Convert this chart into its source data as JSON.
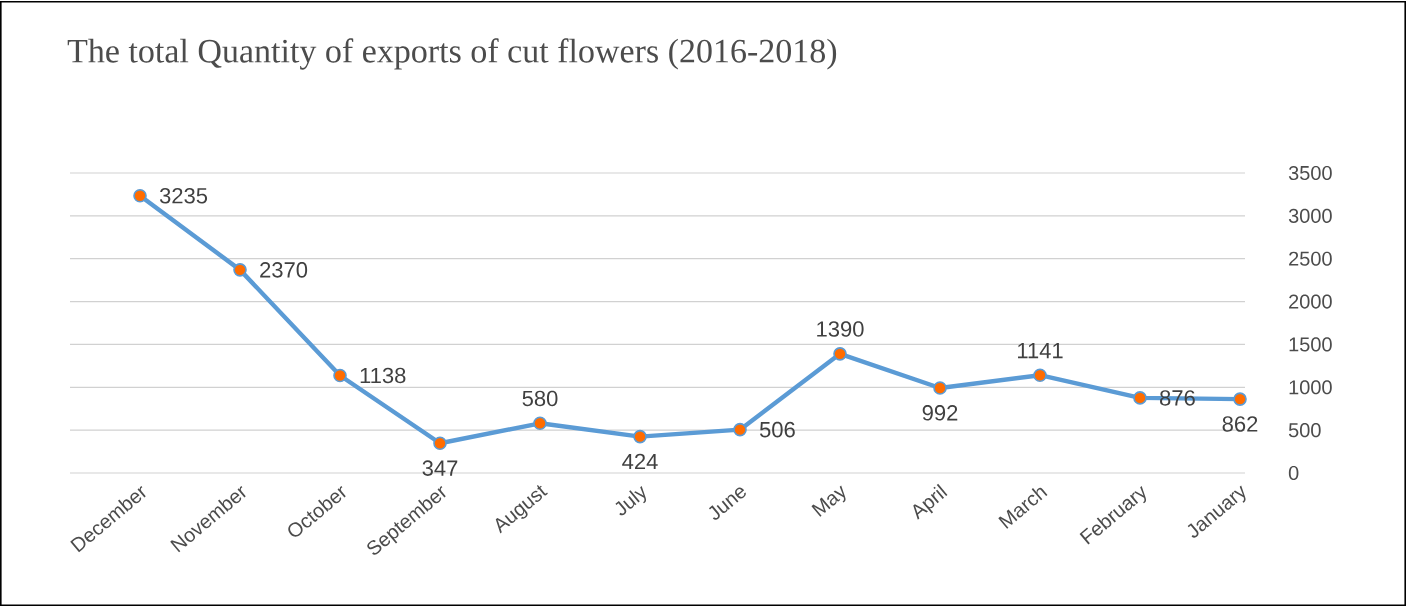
{
  "chart_data": {
    "type": "line",
    "title": "The total Quantity  of exports of cut flowers (2016-2018)",
    "categories": [
      "December",
      "November",
      "October",
      "September",
      "August",
      "July",
      "June",
      "May",
      "April",
      "March",
      "February",
      "January"
    ],
    "series": [
      {
        "color": "#5b9bd5",
        "values": [
          3235,
          2370,
          1138,
          347,
          580,
          424,
          506,
          1390,
          992,
          1141,
          876,
          862
        ]
      }
    ],
    "ylim": [
      0,
      3500
    ],
    "yticks": [
      0,
      500,
      1000,
      1500,
      2000,
      2500,
      3000,
      3500
    ],
    "grid": "y",
    "marker": "circle",
    "line_style": "solid",
    "data_labels": true
  }
}
